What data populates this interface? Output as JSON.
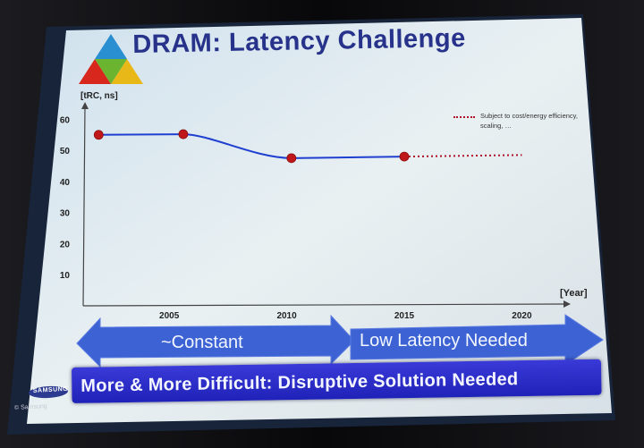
{
  "slide": {
    "title": "DRAM: Latency Challenge",
    "colors": {
      "title": "#27328a",
      "series_solid": "#1f3fd0",
      "series_projection": "#b0102a",
      "marker": "#c01818",
      "arrow": "#3c62d4",
      "banner": "#2a2ac8"
    }
  },
  "chart_data": {
    "type": "line",
    "ylabel": "[tRC, ns]",
    "xlabel": "[Year]",
    "x_ticks": [
      2005,
      2010,
      2015,
      2020
    ],
    "y_ticks": [
      10,
      20,
      30,
      40,
      50,
      60
    ],
    "ylim": [
      0,
      65
    ],
    "xlim": [
      2001,
      2022
    ],
    "grid": false,
    "series": [
      {
        "style": "solid",
        "points": [
          {
            "x": 2002,
            "y": 55
          },
          {
            "x": 2005.6,
            "y": 55.2
          },
          {
            "x": 2010.2,
            "y": 47.5
          },
          {
            "x": 2015,
            "y": 48
          }
        ]
      },
      {
        "style": "dotted",
        "points": [
          {
            "x": 2015,
            "y": 48
          },
          {
            "x": 2020,
            "y": 48.5
          }
        ]
      }
    ],
    "legend": {
      "text": "Subject to cost/energy efficiency, scaling, …",
      "placement": "top-right"
    }
  },
  "arrows": {
    "left_label": "~Constant",
    "right_label": "Low Latency Needed"
  },
  "banner": {
    "text": "More & More Difficult: Disruptive Solution Needed"
  },
  "branding": {
    "logo": "SAMSUNG",
    "copyright": "© Samsung"
  }
}
